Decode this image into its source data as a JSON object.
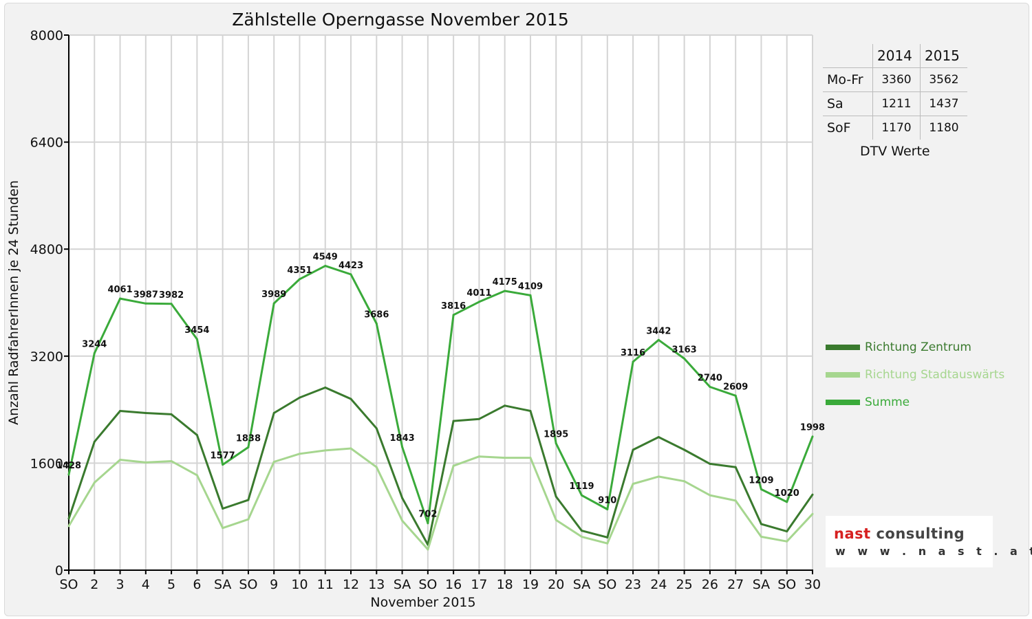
{
  "chart_data": {
    "type": "line",
    "title": "Zählstelle Operngasse November 2015",
    "xlabel": "November 2015",
    "ylabel": "Anzahl RadfahrerInnen je 24 Stunden",
    "ylim": [
      0,
      8000
    ],
    "yticks": [
      "0",
      "1600",
      "3200",
      "4800",
      "6400",
      "8000"
    ],
    "grid": true,
    "legend_position": "right",
    "categories": [
      "SO",
      "2",
      "3",
      "4",
      "5",
      "6",
      "SA",
      "SO",
      "9",
      "10",
      "11",
      "12",
      "13",
      "SA",
      "SO",
      "16",
      "17",
      "18",
      "19",
      "20",
      "SA",
      "SO",
      "23",
      "24",
      "25",
      "26",
      "27",
      "SA",
      "SO",
      "30"
    ],
    "red_categories": [
      0,
      7,
      14,
      21,
      28
    ],
    "series": [
      {
        "name": "Richtung Zentrum",
        "color": "#3a7a2e",
        "values": [
          770,
          1920,
          2380,
          2350,
          2330,
          2020,
          920,
          1050,
          2350,
          2580,
          2730,
          2560,
          2120,
          1080,
          380,
          2230,
          2260,
          2460,
          2380,
          1100,
          590,
          490,
          1800,
          1990,
          1800,
          1590,
          1540,
          690,
          580,
          1130
        ]
      },
      {
        "name": "Richtung Stadtauswärts",
        "color": "#a6d68f",
        "values": [
          660,
          1310,
          1650,
          1610,
          1630,
          1420,
          630,
          760,
          1620,
          1740,
          1790,
          1820,
          1540,
          740,
          310,
          1560,
          1700,
          1680,
          1680,
          750,
          500,
          400,
          1290,
          1400,
          1330,
          1120,
          1040,
          500,
          430,
          840
        ]
      },
      {
        "name": "Summe",
        "color": "#3aaa3a",
        "values": [
          1428,
          3244,
          4061,
          3987,
          3982,
          3454,
          1577,
          1838,
          3989,
          4351,
          4549,
          4423,
          3686,
          1843,
          702,
          3816,
          4011,
          4175,
          4109,
          1895,
          1119,
          910,
          3116,
          3442,
          3163,
          2740,
          2609,
          1209,
          1020,
          1998
        ]
      }
    ],
    "data_labels": [
      "1428",
      "3244",
      "4061",
      "3987",
      "3982",
      "3454",
      "1577",
      "1838",
      "3989",
      "4351",
      "4549",
      "4423",
      "3686",
      "1843",
      "702",
      "3816",
      "4011",
      "4175",
      "4109",
      "1895",
      "1119",
      "910",
      "3116",
      "3442",
      "3163",
      "2740",
      "2609",
      "1209",
      "1020",
      "1998"
    ]
  },
  "dtv_table": {
    "columns": [
      "",
      "2014",
      "2015"
    ],
    "rows": [
      {
        "label": "Mo-Fr",
        "v2014": "3360",
        "v2015": "3562"
      },
      {
        "label": "Sa",
        "v2014": "1211",
        "v2015": "1437"
      },
      {
        "label": "SoF",
        "v2014": "1170",
        "v2015": "1180"
      }
    ],
    "caption": "DTV Werte"
  },
  "logo": {
    "name": "nast consulting",
    "url": "w w w . n a s t . a t"
  },
  "colors": {
    "weekday_label": "#111111",
    "weekend_label": "#e00000"
  }
}
